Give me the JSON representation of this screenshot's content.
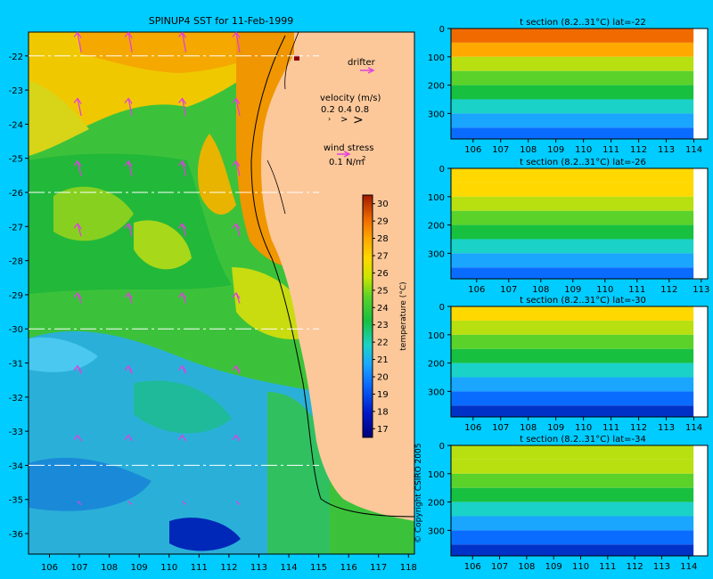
{
  "map": {
    "title": "SPINUP4 SST for 11-Feb-1999",
    "x_ticks": [
      "106",
      "107",
      "108",
      "109",
      "110",
      "111",
      "112",
      "113",
      "114",
      "115",
      "116",
      "117",
      "118"
    ],
    "y_ticks": [
      "-22",
      "-23",
      "-24",
      "-25",
      "-26",
      "-27",
      "-28",
      "-29",
      "-30",
      "-31",
      "-32",
      "-33",
      "-34",
      "-35",
      "-36"
    ],
    "section_lines_lat": [
      -22,
      -26,
      -30,
      -34
    ],
    "legend": {
      "drifter": "drifter",
      "velocity_title": "velocity (m/s)",
      "velocity_values": "0.2 0.4 0.8",
      "wind_title": "wind stress",
      "wind_value": "0.1 N/m",
      "wind_exp": "2"
    },
    "colorbar": {
      "label": "temperature (°C)",
      "ticks": [
        "17",
        "18",
        "19",
        "20",
        "21",
        "22",
        "23",
        "24",
        "25",
        "26",
        "27",
        "28",
        "29",
        "30"
      ]
    },
    "copyright": "© Copyright CSIRO 2005"
  },
  "chart_data": [
    {
      "type": "heatmap",
      "title": "SPINUP4 SST for 11-Feb-1999",
      "xlim": [
        105.3,
        118.2
      ],
      "ylim": [
        -36.6,
        -21.3
      ],
      "x_ticks": [
        106,
        107,
        108,
        109,
        110,
        111,
        112,
        113,
        114,
        115,
        116,
        117,
        118
      ],
      "y_ticks": [
        -22,
        -23,
        -24,
        -25,
        -26,
        -27,
        -28,
        -29,
        -30,
        -31,
        -32,
        -33,
        -34,
        -35,
        -36
      ],
      "colorbar_range": [
        16.5,
        30.5
      ],
      "colorbar_label": "temperature (°C)",
      "sst_by_latitude": {
        "lat": [
          -22,
          -24,
          -26,
          -28,
          -30,
          -32,
          -34,
          -36
        ],
        "offshore_sst": [
          27.5,
          26.5,
          24.5,
          23.5,
          22,
          20,
          19,
          18.5
        ],
        "nearshore_sst": [
          29,
          28,
          27,
          25,
          23.5,
          22.5,
          22,
          21
        ]
      }
    },
    {
      "type": "heatmap",
      "title": "t section (8.2..31°C) lat=-22",
      "xlim": [
        105.2,
        114.5
      ],
      "ylim": [
        390,
        0
      ],
      "x_ticks": [
        106,
        107,
        108,
        109,
        110,
        111,
        112,
        113,
        114
      ],
      "y_ticks": [
        0,
        100,
        200,
        300
      ],
      "depth": [
        0,
        50,
        100,
        150,
        200,
        250,
        300,
        350,
        390
      ],
      "temperature": [
        28,
        26,
        23,
        21,
        19,
        17,
        14,
        12,
        10
      ]
    },
    {
      "type": "heatmap",
      "title": "t section (8.2..31°C) lat=-26",
      "xlim": [
        105.2,
        113.2
      ],
      "ylim": [
        390,
        0
      ],
      "x_ticks": [
        106,
        107,
        108,
        109,
        110,
        111,
        112,
        113
      ],
      "y_ticks": [
        0,
        100,
        200,
        300
      ],
      "depth": [
        0,
        50,
        100,
        150,
        200,
        250,
        300,
        350,
        390
      ],
      "temperature": [
        25,
        24,
        22,
        20,
        18,
        16,
        14,
        12,
        10
      ]
    },
    {
      "type": "heatmap",
      "title": "t section (8.2..31°C) lat=-30",
      "xlim": [
        105.2,
        114.5
      ],
      "ylim": [
        390,
        0
      ],
      "x_ticks": [
        106,
        107,
        108,
        109,
        110,
        111,
        112,
        113,
        114
      ],
      "y_ticks": [
        0,
        100,
        200,
        300
      ],
      "depth": [
        0,
        50,
        100,
        150,
        200,
        250,
        300,
        350,
        390
      ],
      "temperature": [
        24,
        23,
        21,
        19,
        17,
        15,
        13,
        11,
        9
      ]
    },
    {
      "type": "heatmap",
      "title": "t section (8.2..31°C) lat=-34",
      "xlim": [
        105.2,
        114.7
      ],
      "ylim": [
        390,
        0
      ],
      "x_ticks": [
        106,
        107,
        108,
        109,
        110,
        111,
        112,
        113,
        114
      ],
      "y_ticks": [
        0,
        100,
        200,
        300
      ],
      "depth": [
        0,
        50,
        100,
        150,
        200,
        250,
        300,
        350,
        390
      ],
      "temperature": [
        23,
        22,
        20,
        18,
        16,
        14,
        12,
        10,
        9
      ]
    }
  ]
}
